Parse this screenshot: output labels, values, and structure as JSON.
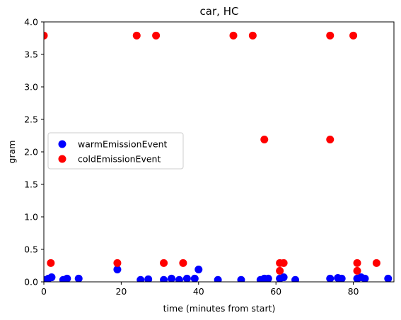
{
  "chart_data": {
    "type": "scatter",
    "title": "car, HC",
    "xlabel": "time (minutes from start)",
    "ylabel": "gram",
    "xlim": [
      0,
      90.5
    ],
    "ylim": [
      0,
      4.0
    ],
    "xticks": [
      0,
      20,
      40,
      60,
      80
    ],
    "yticks": [
      0.0,
      0.5,
      1.0,
      1.5,
      2.0,
      2.5,
      3.0,
      3.5,
      4.0
    ],
    "xtick_labels": [
      "0",
      "20",
      "40",
      "60",
      "80"
    ],
    "ytick_labels": [
      "0.0",
      "0.5",
      "1.0",
      "1.5",
      "2.0",
      "2.5",
      "3.0",
      "3.5",
      "4.0"
    ],
    "grid": false,
    "legend_position": "center-left",
    "series": [
      {
        "name": "warmEmissionEvent",
        "color": "#0000ff",
        "points": [
          [
            0.5,
            0.03
          ],
          [
            1.2,
            0.05
          ],
          [
            2.0,
            0.07
          ],
          [
            5.0,
            0.03
          ],
          [
            6.0,
            0.05
          ],
          [
            9.0,
            0.05
          ],
          [
            19.0,
            0.19
          ],
          [
            25.0,
            0.03
          ],
          [
            27.0,
            0.04
          ],
          [
            31.0,
            0.03
          ],
          [
            33.0,
            0.05
          ],
          [
            35.0,
            0.03
          ],
          [
            37.0,
            0.05
          ],
          [
            39.0,
            0.05
          ],
          [
            40.0,
            0.19
          ],
          [
            45.0,
            0.03
          ],
          [
            51.0,
            0.03
          ],
          [
            56.0,
            0.03
          ],
          [
            57.0,
            0.05
          ],
          [
            58.0,
            0.05
          ],
          [
            61.0,
            0.05
          ],
          [
            62.0,
            0.07
          ],
          [
            65.0,
            0.03
          ],
          [
            74.0,
            0.05
          ],
          [
            76.0,
            0.06
          ],
          [
            77.0,
            0.05
          ],
          [
            81.0,
            0.05
          ],
          [
            82.0,
            0.07
          ],
          [
            83.0,
            0.05
          ],
          [
            89.0,
            0.05
          ]
        ]
      },
      {
        "name": "coldEmissionEvent",
        "color": "#ff0000",
        "points": [
          [
            0.0,
            3.79
          ],
          [
            1.8,
            0.29
          ],
          [
            19.0,
            0.29
          ],
          [
            24.0,
            3.79
          ],
          [
            29.0,
            3.79
          ],
          [
            31.0,
            0.29
          ],
          [
            36.0,
            0.29
          ],
          [
            49.0,
            3.79
          ],
          [
            54.0,
            3.79
          ],
          [
            57.0,
            2.19
          ],
          [
            61.0,
            0.17
          ],
          [
            61.0,
            0.29
          ],
          [
            62.0,
            0.29
          ],
          [
            74.0,
            3.79
          ],
          [
            74.0,
            2.19
          ],
          [
            80.0,
            3.79
          ],
          [
            81.0,
            0.17
          ],
          [
            81.0,
            0.29
          ],
          [
            86.0,
            0.29
          ]
        ]
      }
    ]
  }
}
